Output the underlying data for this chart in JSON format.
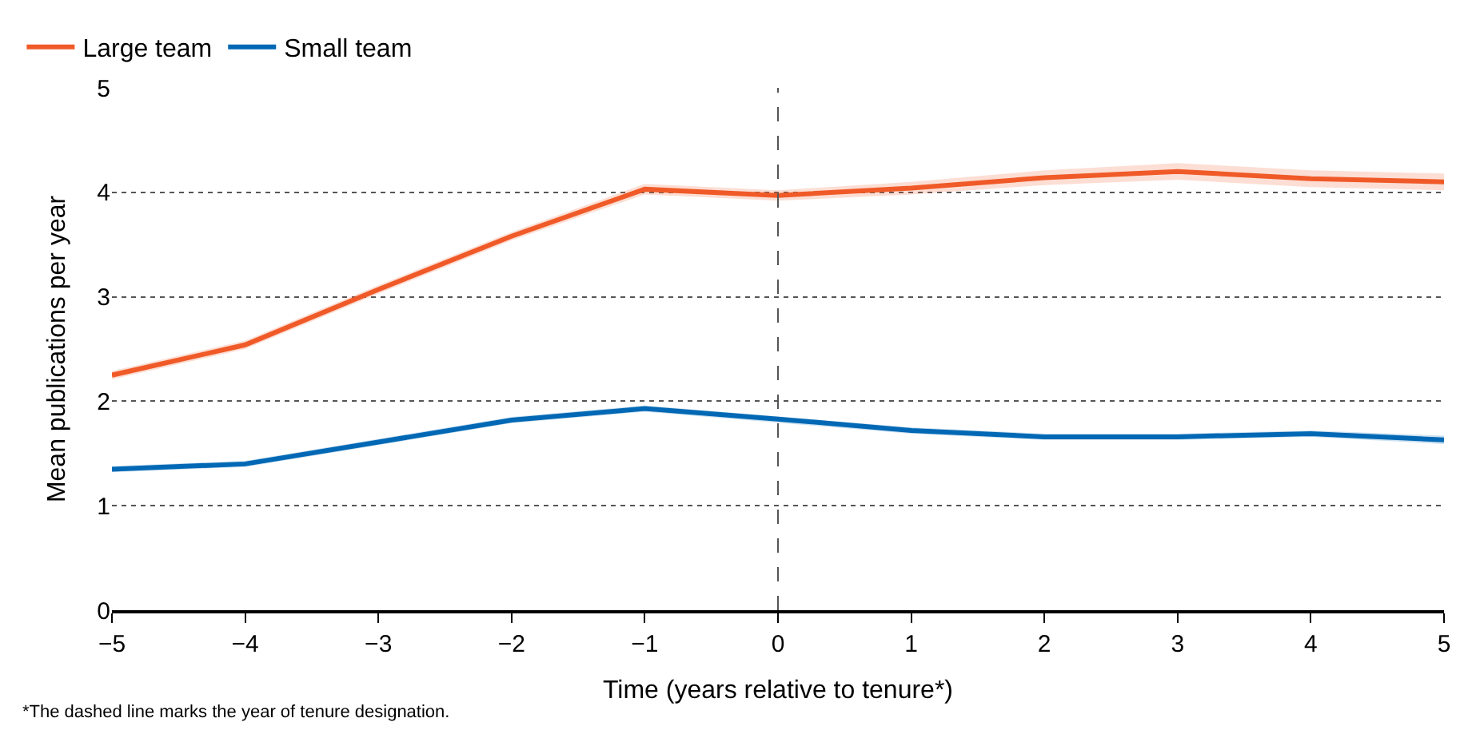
{
  "chart_data": {
    "type": "line",
    "xlabel": "Time (years relative to tenure*)",
    "ylabel": "Mean publications per year",
    "x": [
      -5,
      -4,
      -3,
      -2,
      -1,
      0,
      1,
      2,
      3,
      4,
      5
    ],
    "series": [
      {
        "name": "Large team",
        "color": "#f05a28",
        "values": [
          2.25,
          2.54,
          3.07,
          3.58,
          4.03,
          3.97,
          4.04,
          4.14,
          4.2,
          4.13,
          4.1
        ],
        "lower": [
          2.21,
          2.5,
          3.03,
          3.54,
          3.98,
          3.92,
          3.98,
          4.07,
          4.12,
          4.05,
          4.02
        ],
        "upper": [
          2.29,
          2.58,
          3.11,
          3.62,
          4.08,
          4.02,
          4.1,
          4.21,
          4.28,
          4.21,
          4.18
        ]
      },
      {
        "name": "Small team",
        "color": "#0068b4",
        "values": [
          1.35,
          1.4,
          1.61,
          1.82,
          1.93,
          1.83,
          1.72,
          1.66,
          1.66,
          1.69,
          1.63
        ],
        "lower": [
          1.32,
          1.37,
          1.58,
          1.79,
          1.9,
          1.8,
          1.69,
          1.63,
          1.63,
          1.66,
          1.59
        ],
        "upper": [
          1.38,
          1.43,
          1.64,
          1.85,
          1.96,
          1.86,
          1.75,
          1.69,
          1.69,
          1.72,
          1.67
        ]
      }
    ],
    "xlim": [
      -5,
      5
    ],
    "xticks": [
      {
        "value": -5,
        "label": "−5"
      },
      {
        "value": -4,
        "label": "−4"
      },
      {
        "value": -3,
        "label": "−3"
      },
      {
        "value": -2,
        "label": "−2"
      },
      {
        "value": -1,
        "label": "−1"
      },
      0,
      1,
      2,
      3,
      4,
      5
    ],
    "ylim": [
      0,
      5
    ],
    "yticks": [
      0,
      1,
      2,
      3,
      4,
      5
    ],
    "ref_lines": [
      {
        "axis": "x",
        "value": 0,
        "color": "#555555",
        "line_style": "dashed"
      }
    ],
    "annotations": [
      "*The dashed line marks the year of tenure designation."
    ],
    "grid": "y",
    "legend": "top left",
    "marker": "none",
    "line_style": "solid"
  }
}
